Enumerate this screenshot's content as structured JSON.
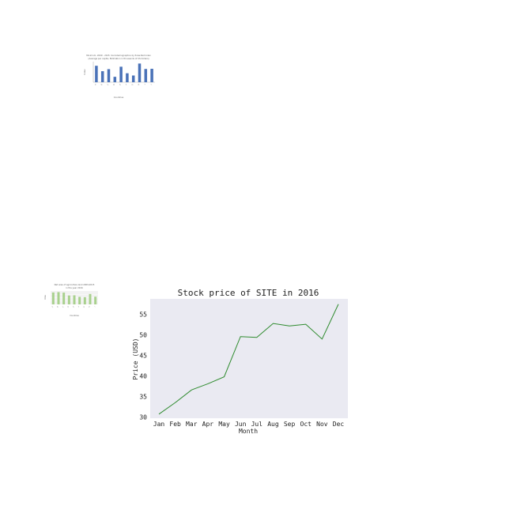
{
  "chart_data": [
    {
      "type": "bar",
      "title": "Minimum, 2009 - 2015. Sociodemographics by Pulse Net Index",
      "subtitle": "(Average per capita, Estimation in thousands of US Dollars)",
      "xlabel": "Countries",
      "ylabel": "Index",
      "categories": [
        "A",
        "B",
        "C",
        "D",
        "E",
        "F",
        "G",
        "H",
        "I",
        "J"
      ],
      "values": [
        8.8,
        5.9,
        7.0,
        2.9,
        8.3,
        4.8,
        3.6,
        10.0,
        7.1,
        7.2
      ],
      "ylim": [
        0,
        11
      ],
      "grid": false,
      "bar_color": "#4a72b8"
    },
    {
      "type": "bar",
      "title": "Net area of agriculture land 2009-2015",
      "subtitle": "in the year 2016",
      "xlabel": "Countries",
      "ylabel": "Area",
      "categories": [
        "A",
        "B",
        "C",
        "D",
        "E",
        "F",
        "G",
        "H",
        "I"
      ],
      "values": [
        7.1,
        7.3,
        7.0,
        5.3,
        5.4,
        4.5,
        4.3,
        6.2,
        4.6
      ],
      "ylim": [
        0,
        8
      ],
      "grid": true,
      "bar_color": "#a9d18e"
    },
    {
      "type": "line",
      "title": "Stock price of SITE in 2016",
      "xlabel": "Month",
      "ylabel": "Price (USD)",
      "categories": [
        "Jan",
        "Feb",
        "Mar",
        "Apr",
        "May",
        "Jun",
        "Jul",
        "Aug",
        "Sep",
        "Oct",
        "Nov",
        "Dec"
      ],
      "values": [
        30.7,
        33.5,
        36.6,
        38.1,
        39.8,
        49.6,
        49.4,
        52.8,
        52.2,
        52.6,
        49.0,
        57.5
      ],
      "yticks": [
        30,
        35,
        40,
        45,
        50,
        55
      ],
      "ylim": [
        29.7,
        58.8
      ],
      "grid": false,
      "background": "#eaeaf2",
      "line_color": "#2e8b2e"
    }
  ]
}
